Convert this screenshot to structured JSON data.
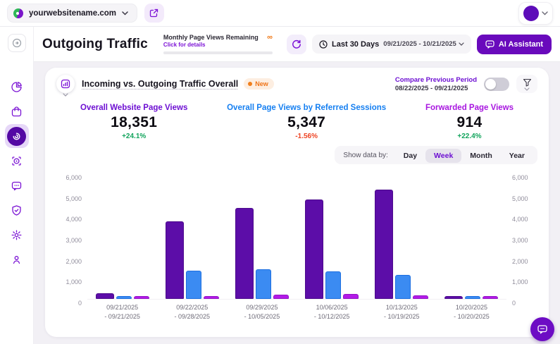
{
  "topbar": {
    "website": "yourwebsitename.com"
  },
  "header": {
    "title": "Outgoing Traffic",
    "quota": {
      "label": "Monthly Page Views Remaining",
      "link": "Click for details",
      "value": "∞"
    },
    "date": {
      "preset": "Last 30 Days",
      "range": "09/21/2025 - 10/21/2025"
    },
    "ai_button": "AI Assistant"
  },
  "sidebar": {
    "items": [
      {
        "icon": "pie-chart-icon",
        "active": false
      },
      {
        "icon": "bag-icon",
        "active": false
      },
      {
        "icon": "outgoing-traffic-icon",
        "active": true
      },
      {
        "icon": "scan-target-icon",
        "active": false
      },
      {
        "icon": "chat-icon",
        "active": false
      },
      {
        "icon": "shield-check-icon",
        "active": false
      },
      {
        "icon": "gear-icon",
        "active": false
      },
      {
        "icon": "user-pin-icon",
        "active": false
      }
    ]
  },
  "card": {
    "title": "Incoming vs. Outgoing Traffic Overall",
    "badge": "New",
    "compare": {
      "label": "Compare Previous Period",
      "range": "08/22/2025 - 09/21/2025",
      "enabled": false
    },
    "metrics": [
      {
        "label": "Overall Website Page Views",
        "value": "18,351",
        "delta": "+24.1%",
        "label_color": "#6d0fd2",
        "delta_color": "#12a45c"
      },
      {
        "label": "Overall Page Views by Referred Sessions",
        "value": "5,347",
        "delta": "-1.56%",
        "label_color": "#157ff1",
        "delta_color": "#ee4424"
      },
      {
        "label": "Forwarded Page Views",
        "value": "914",
        "delta": "+22.4%",
        "label_color": "#a816e0",
        "delta_color": "#12a45c"
      }
    ],
    "show_data_by": {
      "label": "Show data by:",
      "options": [
        "Day",
        "Week",
        "Month",
        "Year"
      ],
      "selected": "Week"
    }
  },
  "chart_data": {
    "type": "bar",
    "categories": [
      {
        "line1": "09/21/2025",
        "line2": "- 09/21/2025"
      },
      {
        "line1": "09/22/2025",
        "line2": "- 09/28/2025"
      },
      {
        "line1": "09/29/2025",
        "line2": "- 10/05/2025"
      },
      {
        "line1": "10/06/2025",
        "line2": "- 10/12/2025"
      },
      {
        "line1": "10/13/2025",
        "line2": "- 10/19/2025"
      },
      {
        "line1": "10/20/2025",
        "line2": "- 10/20/2025"
      }
    ],
    "series": [
      {
        "name": "Overall Website Page Views",
        "color": "#5c0da8",
        "border": "#4c0a8c",
        "values": [
          260,
          3700,
          4350,
          4750,
          5230,
          61
        ]
      },
      {
        "name": "Overall Page Views by Referred Sessions",
        "color": "#3b8bf2",
        "border": "#1d6fe0",
        "values": [
          90,
          1350,
          1400,
          1300,
          1150,
          57
        ]
      },
      {
        "name": "Forwarded Page Views",
        "color": "#b31ae8",
        "border": "#9414c6",
        "values": [
          70,
          145,
          195,
          230,
          185,
          89
        ]
      }
    ],
    "ylim": [
      0,
      6000
    ],
    "yticks": [
      "6,000",
      "5,000",
      "4,000",
      "3,000",
      "2,000",
      "1,000",
      "0"
    ],
    "grid": false,
    "legend": "none",
    "dual_axis": true
  }
}
